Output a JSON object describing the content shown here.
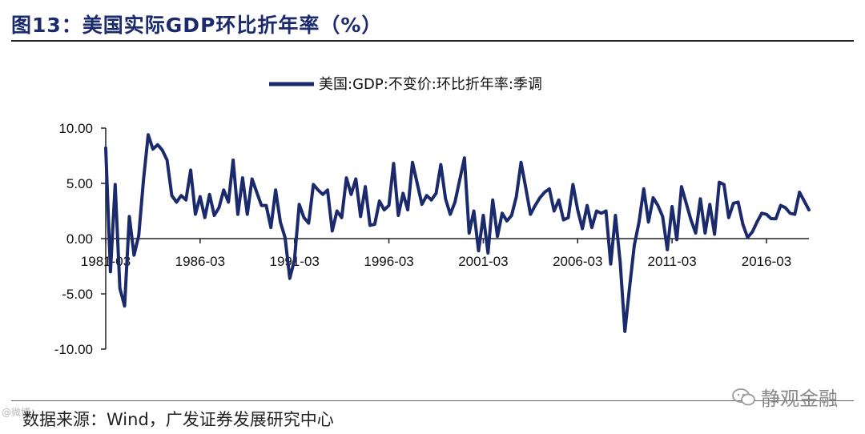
{
  "header": {
    "title": "图13：美国实际GDP环比折年率（%）"
  },
  "footer": {
    "source": "数据来源：Wind，广发证券发展研究中心",
    "watermark": "静观金融",
    "watermark_left": "@微博："
  },
  "colors": {
    "series": "#1a2a6c",
    "axis": "#222222"
  },
  "chart_data": {
    "type": "line",
    "title": "",
    "xlabel": "",
    "ylabel": "",
    "ylim": [
      -10,
      10
    ],
    "yticks": [
      10,
      5,
      0,
      -5,
      -10
    ],
    "ytick_labels": [
      "10.00",
      "5.00",
      "0.00",
      "-5.00",
      "-10.00"
    ],
    "xtick_labels": [
      "1981-03",
      "1986-03",
      "1991-03",
      "1996-03",
      "2001-03",
      "2006-03",
      "2011-03",
      "2016-03"
    ],
    "xtick_index": [
      0,
      20,
      40,
      60,
      80,
      100,
      120,
      140
    ],
    "legend": "top-center",
    "series": [
      {
        "name": "美国:GDP:不变价:环比折年率:季调",
        "values": [
          8.2,
          -3.0,
          4.9,
          -4.5,
          -6.1,
          2.0,
          -1.5,
          0.3,
          5.3,
          9.4,
          8.1,
          8.5,
          8.0,
          7.1,
          3.9,
          3.3,
          3.9,
          3.5,
          6.2,
          2.2,
          3.8,
          1.9,
          4.0,
          2.1,
          2.8,
          4.4,
          3.3,
          7.1,
          2.2,
          5.5,
          2.2,
          5.4,
          4.2,
          3.0,
          3.0,
          1.0,
          4.4,
          1.5,
          0.1,
          -3.6,
          -1.9,
          3.1,
          1.9,
          1.4,
          4.9,
          4.4,
          4.0,
          4.4,
          0.7,
          2.5,
          1.9,
          5.5,
          4.0,
          5.4,
          2.0,
          4.7,
          1.2,
          1.3,
          3.4,
          2.6,
          3.0,
          6.8,
          2.1,
          4.1,
          2.6,
          6.9,
          5.0,
          3.1,
          3.9,
          3.5,
          4.1,
          6.7,
          3.6,
          2.2,
          3.3,
          5.3,
          7.3,
          0.5,
          2.5,
          -1.1,
          2.1,
          -1.3,
          3.5,
          0.2,
          2.3,
          1.6,
          2.1,
          3.8,
          6.9,
          4.6,
          2.2,
          3.0,
          3.7,
          4.2,
          4.5,
          2.5,
          3.5,
          1.7,
          1.9,
          4.9,
          2.6,
          0.9,
          3.0,
          1.0,
          2.5,
          2.3,
          2.5,
          -2.3,
          2.1,
          -2.1,
          -8.4,
          -4.4,
          -0.6,
          1.5,
          4.5,
          1.5,
          3.7,
          3.0,
          2.0,
          -1.0,
          2.9,
          -0.1,
          4.7,
          3.2,
          1.7,
          0.5,
          3.6,
          0.5,
          3.1,
          0.4,
          5.1,
          4.9,
          1.9,
          3.2,
          3.3,
          1.3,
          0.1,
          0.6,
          1.5,
          2.3,
          2.2,
          1.8,
          1.8,
          3.0,
          2.8,
          2.3,
          2.2,
          4.2,
          3.4,
          2.6
        ]
      }
    ]
  }
}
